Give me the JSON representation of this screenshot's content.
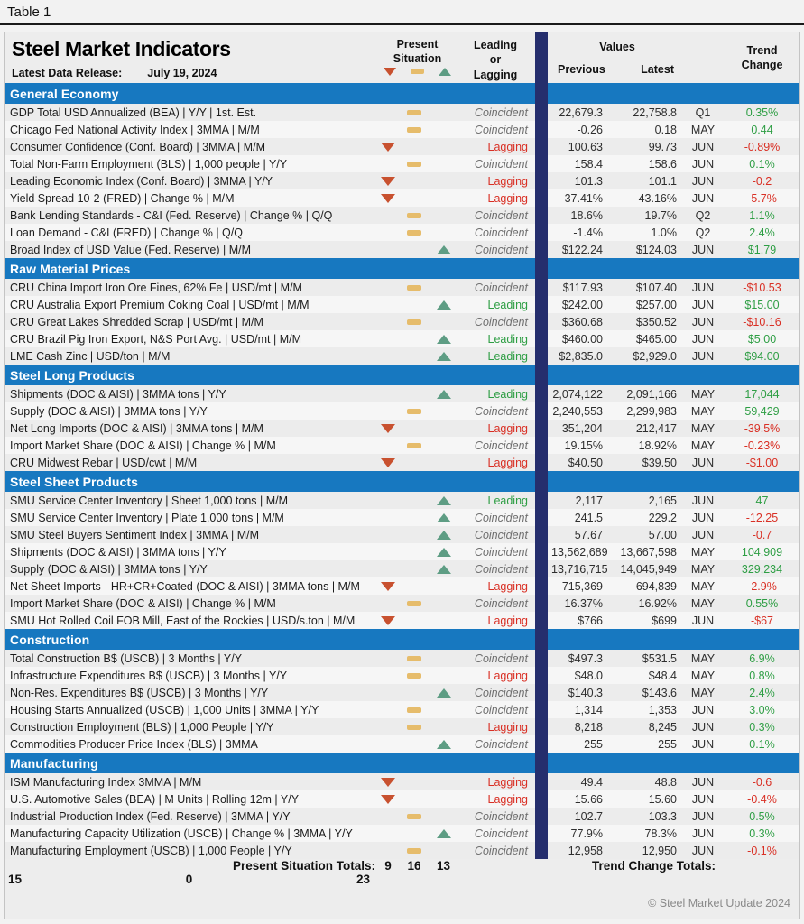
{
  "page": {
    "table_label": "Table 1",
    "copyright": "© Steel Market Update 2024"
  },
  "colors": {
    "section_blue": "#1778c0",
    "divider_navy": "#252e6d",
    "down_red": "#c8512f",
    "flat_yellow": "#e6bc6b",
    "up_green": "#5e9d84",
    "positive_green": "#2e9e44",
    "negative_red": "#d93025",
    "coincident_gray": "#6f6f6f"
  },
  "header": {
    "title": "Steel Market Indicators",
    "release_label": "Latest Data Release:",
    "release_date": "July 19, 2024",
    "present_situation": "Present Situation",
    "leading_or_lagging": "Leading or Lagging",
    "values": "Values",
    "previous": "Previous",
    "latest": "Latest",
    "trend_change": "Trend Change"
  },
  "totals": {
    "present_label": "Present Situation Totals:",
    "present_down": "9",
    "present_flat": "16",
    "present_up": "13",
    "trend_label": "Trend Change Totals:",
    "trend_neg": "15",
    "trend_zero": "0",
    "trend_pos": "23"
  },
  "sections": [
    {
      "name": "General Economy",
      "rows": [
        {
          "label": "GDP Total USD Annualized (BEA) | Y/Y | 1st. Est.",
          "situation": "flat",
          "class": "Coincident",
          "previous": "22,679.3",
          "latest": "22,758.8",
          "period": "Q1",
          "trend": "0.35%",
          "trend_dir": "pos"
        },
        {
          "label": "Chicago Fed National Activity Index | 3MMA | M/M",
          "situation": "flat",
          "class": "Coincident",
          "previous": "-0.26",
          "latest": "0.18",
          "period": "MAY",
          "trend": "0.44",
          "trend_dir": "pos"
        },
        {
          "label": "Consumer Confidence (Conf. Board) | 3MMA | M/M",
          "situation": "down",
          "class": "Lagging",
          "previous": "100.63",
          "latest": "99.73",
          "period": "JUN",
          "trend": "-0.89%",
          "trend_dir": "neg"
        },
        {
          "label": "Total Non-Farm Employment (BLS) | 1,000 people | Y/Y",
          "situation": "flat",
          "class": "Coincident",
          "previous": "158.4",
          "latest": "158.6",
          "period": "JUN",
          "trend": "0.1%",
          "trend_dir": "pos"
        },
        {
          "label": "Leading Economic Index (Conf. Board) | 3MMA | Y/Y",
          "situation": "down",
          "class": "Lagging",
          "previous": "101.3",
          "latest": "101.1",
          "period": "JUN",
          "trend": "-0.2",
          "trend_dir": "neg"
        },
        {
          "label": "Yield Spread 10-2 (FRED) | Change % | M/M",
          "situation": "down",
          "class": "Lagging",
          "previous": "-37.41%",
          "latest": "-43.16%",
          "period": "JUN",
          "trend": "-5.7%",
          "trend_dir": "neg"
        },
        {
          "label": "Bank Lending Standards - C&I (Fed. Reserve) | Change % | Q/Q",
          "situation": "flat",
          "class": "Coincident",
          "previous": "18.6%",
          "latest": "19.7%",
          "period": "Q2",
          "trend": "1.1%",
          "trend_dir": "pos"
        },
        {
          "label": "Loan Demand - C&I (FRED) | Change % | Q/Q",
          "situation": "flat",
          "class": "Coincident",
          "previous": "-1.4%",
          "latest": "1.0%",
          "period": "Q2",
          "trend": "2.4%",
          "trend_dir": "pos"
        },
        {
          "label": "Broad Index of USD Value (Fed. Reserve) | M/M",
          "situation": "up",
          "class": "Coincident",
          "previous": "$122.24",
          "latest": "$124.03",
          "period": "JUN",
          "trend": "$1.79",
          "trend_dir": "pos"
        }
      ]
    },
    {
      "name": "Raw Material Prices",
      "rows": [
        {
          "label": "CRU China Import Iron Ore Fines, 62% Fe | USD/mt | M/M",
          "situation": "flat",
          "class": "Coincident",
          "previous": "$117.93",
          "latest": "$107.40",
          "period": "JUN",
          "trend": "-$10.53",
          "trend_dir": "neg"
        },
        {
          "label": "CRU Australia Export Premium Coking Coal | USD/mt | M/M",
          "situation": "up",
          "class": "Leading",
          "previous": "$242.00",
          "latest": "$257.00",
          "period": "JUN",
          "trend": "$15.00",
          "trend_dir": "pos"
        },
        {
          "label": "CRU Great Lakes Shredded Scrap | USD/mt | M/M",
          "situation": "flat",
          "class": "Coincident",
          "previous": "$360.68",
          "latest": "$350.52",
          "period": "JUN",
          "trend": "-$10.16",
          "trend_dir": "neg"
        },
        {
          "label": "CRU Brazil Pig Iron Export, N&S Port Avg. | USD/mt | M/M",
          "situation": "up",
          "class": "Leading",
          "previous": "$460.00",
          "latest": "$465.00",
          "period": "JUN",
          "trend": "$5.00",
          "trend_dir": "pos"
        },
        {
          "label": "LME Cash Zinc | USD/ton | M/M",
          "situation": "up",
          "class": "Leading",
          "previous": "$2,835.0",
          "latest": "$2,929.0",
          "period": "JUN",
          "trend": "$94.00",
          "trend_dir": "pos"
        }
      ]
    },
    {
      "name": "Steel Long Products",
      "rows": [
        {
          "label": "Shipments (DOC & AISI) | 3MMA tons | Y/Y",
          "situation": "up",
          "class": "Leading",
          "previous": "2,074,122",
          "latest": "2,091,166",
          "period": "MAY",
          "trend": "17,044",
          "trend_dir": "pos"
        },
        {
          "label": "Supply (DOC & AISI) | 3MMA tons | Y/Y",
          "situation": "flat",
          "class": "Coincident",
          "previous": "2,240,553",
          "latest": "2,299,983",
          "period": "MAY",
          "trend": "59,429",
          "trend_dir": "pos"
        },
        {
          "label": "Net Long Imports (DOC & AISI) | 3MMA tons | M/M",
          "situation": "down",
          "class": "Lagging",
          "previous": "351,204",
          "latest": "212,417",
          "period": "MAY",
          "trend": "-39.5%",
          "trend_dir": "neg"
        },
        {
          "label": "Import Market Share (DOC & AISI) | Change % | M/M",
          "situation": "flat",
          "class": "Coincident",
          "previous": "19.15%",
          "latest": "18.92%",
          "period": "MAY",
          "trend": "-0.23%",
          "trend_dir": "neg"
        },
        {
          "label": "CRU Midwest Rebar | USD/cwt | M/M",
          "situation": "down",
          "class": "Lagging",
          "previous": "$40.50",
          "latest": "$39.50",
          "period": "JUN",
          "trend": "-$1.00",
          "trend_dir": "neg"
        }
      ]
    },
    {
      "name": "Steel Sheet Products",
      "rows": [
        {
          "label": "SMU Service Center Inventory | Sheet 1,000 tons | M/M",
          "situation": "up",
          "class": "Leading",
          "previous": "2,117",
          "latest": "2,165",
          "period": "JUN",
          "trend": "47",
          "trend_dir": "pos"
        },
        {
          "label": "SMU Service Center Inventory | Plate 1,000 tons | M/M",
          "situation": "up",
          "class": "Coincident",
          "previous": "241.5",
          "latest": "229.2",
          "period": "JUN",
          "trend": "-12.25",
          "trend_dir": "neg"
        },
        {
          "label": "SMU Steel Buyers Sentiment Index | 3MMA | M/M",
          "situation": "up",
          "class": "Coincident",
          "previous": "57.67",
          "latest": "57.00",
          "period": "JUN",
          "trend": "-0.7",
          "trend_dir": "neg"
        },
        {
          "label": "Shipments (DOC & AISI) | 3MMA tons | Y/Y",
          "situation": "up",
          "class": "Coincident",
          "previous": "13,562,689",
          "latest": "13,667,598",
          "period": "MAY",
          "trend": "104,909",
          "trend_dir": "pos"
        },
        {
          "label": "Supply (DOC & AISI) | 3MMA tons | Y/Y",
          "situation": "up",
          "class": "Coincident",
          "previous": "13,716,715",
          "latest": "14,045,949",
          "period": "MAY",
          "trend": "329,234",
          "trend_dir": "pos"
        },
        {
          "label": "Net Sheet Imports - HR+CR+Coated (DOC & AISI) | 3MMA tons | M/M",
          "situation": "down",
          "class": "Lagging",
          "previous": "715,369",
          "latest": "694,839",
          "period": "MAY",
          "trend": "-2.9%",
          "trend_dir": "neg"
        },
        {
          "label": "Import Market Share (DOC & AISI) | Change % | M/M",
          "situation": "flat",
          "class": "Coincident",
          "previous": "16.37%",
          "latest": "16.92%",
          "period": "MAY",
          "trend": "0.55%",
          "trend_dir": "pos"
        },
        {
          "label": "SMU Hot Rolled Coil FOB Mill, East of the Rockies | USD/s.ton | M/M",
          "situation": "down",
          "class": "Lagging",
          "previous": "$766",
          "latest": "$699",
          "period": "JUN",
          "trend": "-$67",
          "trend_dir": "neg"
        }
      ]
    },
    {
      "name": "Construction",
      "rows": [
        {
          "label": "Total Construction B$ (USCB) | 3 Months | Y/Y",
          "situation": "flat",
          "class": "Coincident",
          "previous": "$497.3",
          "latest": "$531.5",
          "period": "MAY",
          "trend": "6.9%",
          "trend_dir": "pos"
        },
        {
          "label": "Infrastructure Expenditures B$ (USCB) | 3 Months | Y/Y",
          "situation": "flat",
          "class": "Lagging",
          "previous": "$48.0",
          "latest": "$48.4",
          "period": "MAY",
          "trend": "0.8%",
          "trend_dir": "pos"
        },
        {
          "label": "Non-Res. Expenditures B$ (USCB) | 3 Months | Y/Y",
          "situation": "up",
          "class": "Coincident",
          "previous": "$140.3",
          "latest": "$143.6",
          "period": "MAY",
          "trend": "2.4%",
          "trend_dir": "pos"
        },
        {
          "label": "Housing Starts Annualized (USCB) | 1,000 Units | 3MMA | Y/Y",
          "situation": "flat",
          "class": "Coincident",
          "previous": "1,314",
          "latest": "1,353",
          "period": "JUN",
          "trend": "3.0%",
          "trend_dir": "pos"
        },
        {
          "label": "Construction Employment (BLS) | 1,000 People | Y/Y",
          "situation": "flat",
          "class": "Lagging",
          "previous": "8,218",
          "latest": "8,245",
          "period": "JUN",
          "trend": "0.3%",
          "trend_dir": "pos"
        },
        {
          "label": "Commodities Producer Price Index (BLS) | 3MMA",
          "situation": "up",
          "class": "Coincident",
          "previous": "255",
          "latest": "255",
          "period": "JUN",
          "trend": "0.1%",
          "trend_dir": "pos"
        }
      ]
    },
    {
      "name": "Manufacturing",
      "rows": [
        {
          "label": "ISM Manufacturing Index 3MMA | M/M",
          "situation": "down",
          "class": "Lagging",
          "previous": "49.4",
          "latest": "48.8",
          "period": "JUN",
          "trend": "-0.6",
          "trend_dir": "neg"
        },
        {
          "label": "U.S. Automotive Sales (BEA) | M Units | Rolling 12m | Y/Y",
          "situation": "down",
          "class": "Lagging",
          "previous": "15.66",
          "latest": "15.60",
          "period": "JUN",
          "trend": "-0.4%",
          "trend_dir": "neg"
        },
        {
          "label": "Industrial Production Index (Fed. Reserve) | 3MMA | Y/Y",
          "situation": "flat",
          "class": "Coincident",
          "previous": "102.7",
          "latest": "103.3",
          "period": "JUN",
          "trend": "0.5%",
          "trend_dir": "pos"
        },
        {
          "label": "Manufacturing Capacity Utilization (USCB) | Change % | 3MMA | Y/Y",
          "situation": "up",
          "class": "Coincident",
          "previous": "77.9%",
          "latest": "78.3%",
          "period": "JUN",
          "trend": "0.3%",
          "trend_dir": "pos"
        },
        {
          "label": "Manufacturing Employment (USCB) | 1,000 People | Y/Y",
          "situation": "flat",
          "class": "Coincident",
          "previous": "12,958",
          "latest": "12,950",
          "period": "JUN",
          "trend": "-0.1%",
          "trend_dir": "neg"
        }
      ]
    }
  ]
}
